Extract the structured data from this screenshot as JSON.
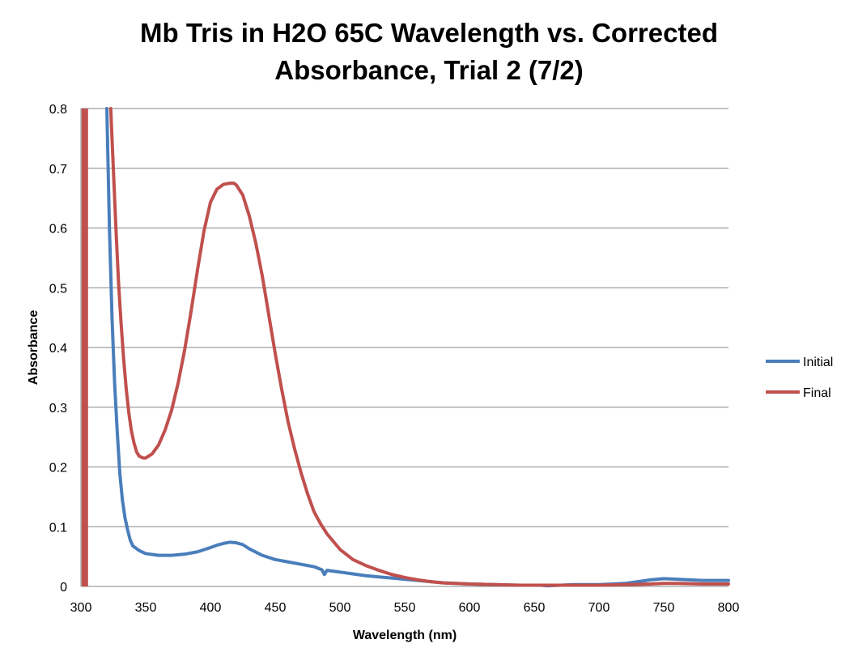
{
  "chart_data": {
    "type": "line",
    "title_lines": [
      "Mb Tris in H2O 65C Wavelength vs. Corrected",
      "Absorbance, Trial 2 (7/2)"
    ],
    "xlabel": "Wavelength (nm)",
    "ylabel": "Absorbance",
    "xlim": [
      300,
      800
    ],
    "ylim": [
      0,
      0.8
    ],
    "xticks": [
      "300",
      "350",
      "400",
      "450",
      "500",
      "550",
      "600",
      "650",
      "700",
      "750",
      "800"
    ],
    "yticks": [
      "0",
      "0.1",
      "0.2",
      "0.3",
      "0.4",
      "0.5",
      "0.6",
      "0.7",
      "0.8"
    ],
    "grid": "horizontal",
    "legend_position": "right",
    "series": [
      {
        "name": "Initial",
        "color": "#4a7ebb",
        "x": [
          320,
          322,
          324,
          326,
          328,
          330,
          332,
          334,
          336,
          338,
          340,
          345,
          350,
          360,
          370,
          380,
          390,
          400,
          405,
          410,
          415,
          420,
          425,
          430,
          440,
          450,
          460,
          470,
          480,
          486,
          488,
          490,
          500,
          510,
          520,
          530,
          540,
          550,
          560,
          570,
          580,
          600,
          620,
          640,
          655,
          660,
          670,
          680,
          700,
          720,
          730,
          740,
          750,
          760,
          770,
          780,
          790,
          800
        ],
        "y": [
          0.8,
          0.6,
          0.45,
          0.34,
          0.26,
          0.19,
          0.145,
          0.115,
          0.095,
          0.078,
          0.068,
          0.06,
          0.055,
          0.052,
          0.052,
          0.054,
          0.058,
          0.065,
          0.069,
          0.072,
          0.074,
          0.073,
          0.07,
          0.063,
          0.052,
          0.045,
          0.041,
          0.037,
          0.033,
          0.028,
          0.02,
          0.027,
          0.024,
          0.021,
          0.018,
          0.016,
          0.014,
          0.012,
          0.01,
          0.008,
          0.006,
          0.004,
          0.003,
          0.002,
          0.002,
          0.001,
          0.002,
          0.003,
          0.003,
          0.005,
          0.008,
          0.011,
          0.013,
          0.012,
          0.011,
          0.01,
          0.01,
          0.01
        ]
      },
      {
        "name": "Final",
        "color": "#c0504d",
        "x": [
          323,
          325,
          327,
          329,
          331,
          333,
          335,
          337,
          339,
          341,
          343,
          345,
          348,
          350,
          355,
          360,
          365,
          370,
          375,
          380,
          385,
          390,
          395,
          400,
          405,
          410,
          415,
          418,
          420,
          425,
          430,
          435,
          440,
          445,
          450,
          455,
          460,
          465,
          470,
          475,
          480,
          485,
          490,
          500,
          510,
          520,
          530,
          540,
          550,
          560,
          570,
          580,
          590,
          600,
          620,
          640,
          660,
          680,
          700,
          720,
          740,
          750,
          760,
          780,
          800
        ],
        "y": [
          0.8,
          0.7,
          0.6,
          0.51,
          0.44,
          0.38,
          0.33,
          0.29,
          0.26,
          0.24,
          0.225,
          0.218,
          0.215,
          0.215,
          0.222,
          0.237,
          0.262,
          0.295,
          0.34,
          0.395,
          0.46,
          0.53,
          0.595,
          0.643,
          0.665,
          0.673,
          0.675,
          0.675,
          0.672,
          0.655,
          0.62,
          0.575,
          0.52,
          0.455,
          0.39,
          0.33,
          0.275,
          0.23,
          0.19,
          0.155,
          0.125,
          0.105,
          0.088,
          0.062,
          0.045,
          0.035,
          0.027,
          0.02,
          0.015,
          0.011,
          0.008,
          0.006,
          0.005,
          0.004,
          0.003,
          0.002,
          0.002,
          0.002,
          0.002,
          0.003,
          0.004,
          0.005,
          0.005,
          0.004,
          0.004
        ]
      }
    ],
    "spike": {
      "color": "#c0504d",
      "x": 303,
      "ylim": [
        0,
        0.8
      ]
    }
  }
}
